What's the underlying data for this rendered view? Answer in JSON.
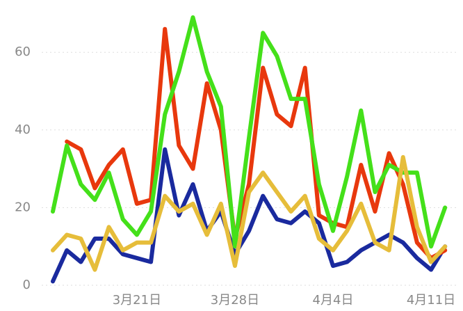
{
  "chart_data": {
    "type": "line",
    "categories": [
      null,
      null,
      null,
      null,
      null,
      null,
      "3月21日",
      null,
      null,
      null,
      null,
      null,
      null,
      "3月28日",
      null,
      null,
      null,
      null,
      null,
      null,
      "4月4日",
      null,
      null,
      null,
      null,
      null,
      null,
      "4月11日",
      null
    ],
    "series": [
      {
        "color": "#1a2a9e",
        "values": [
          1,
          9,
          6,
          12,
          12,
          8,
          7,
          6,
          35,
          18,
          26,
          14,
          19,
          8,
          14,
          23,
          17,
          16,
          19,
          16,
          5,
          6,
          9,
          11,
          13,
          11,
          7,
          4,
          10
        ]
      },
      {
        "color": "#e8380d",
        "values": [
          null,
          37,
          35,
          25,
          31,
          35,
          21,
          22,
          66,
          36,
          30,
          52,
          40,
          12,
          26,
          56,
          44,
          41,
          56,
          18,
          16,
          15,
          31,
          19,
          34,
          26,
          11,
          7,
          9
        ]
      },
      {
        "color": "#44e01a",
        "values": [
          19,
          36,
          26,
          22,
          29,
          17,
          13,
          19,
          44,
          55,
          69,
          55,
          46,
          10,
          38,
          65,
          59,
          48,
          48,
          26,
          14,
          28,
          45,
          24,
          31,
          29,
          29,
          10,
          20
        ]
      },
      {
        "color": "#e6bd3a",
        "values": [
          9,
          13,
          12,
          4,
          15,
          9,
          11,
          11,
          23,
          19,
          21,
          13,
          21,
          5,
          24,
          29,
          24,
          19,
          23,
          12,
          9,
          14,
          21,
          11,
          9,
          33,
          15,
          6,
          10
        ]
      }
    ],
    "ylim": [
      0,
      70
    ],
    "yticks": [
      0,
      20,
      40,
      60
    ],
    "grid": true
  }
}
